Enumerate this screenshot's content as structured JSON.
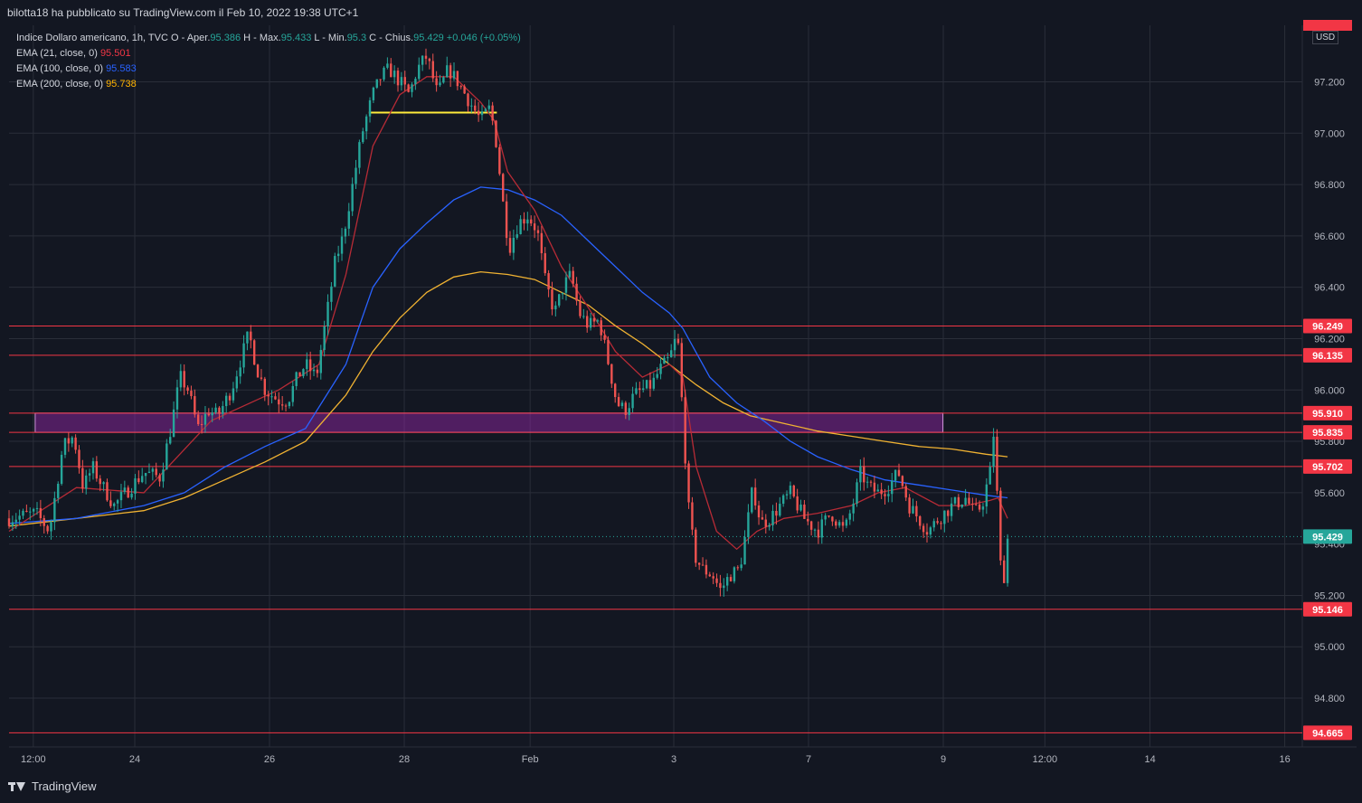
{
  "header": {
    "publisher_text": "bilotta18 ha pubblicato su TradingView.com il Feb 10, 2022 19:38 UTC+1"
  },
  "legend": {
    "symbol_text": "Indice Dollaro americano, 1h, TVC",
    "open_label": "O - Aper.",
    "open_value": "95.386",
    "high_label": "H - Max.",
    "high_value": "95.433",
    "low_label": "L - Min.",
    "low_value": "95.3",
    "close_label": "C - Chius.",
    "close_value": "95.429",
    "change_text": "+0.046 (+0.05%)",
    "ema21_label": "EMA (21, close, 0)",
    "ema21_value": "95.501",
    "ema100_label": "EMA (100, close, 0)",
    "ema100_value": "95.583",
    "ema200_label": "EMA (200, close, 0)",
    "ema200_value": "95.738"
  },
  "currency": "USD",
  "brand": "TradingView",
  "colors": {
    "background": "#131722",
    "grid": "#2a2e39",
    "up": "#26a69a",
    "down": "#ef5350",
    "ema21": "#b72b36",
    "ema100": "#2962ff",
    "ema200": "#f0b232",
    "level_line": "#f23645",
    "zone_fill": "#9c27b0",
    "yellow_level": "#ffeb3b"
  },
  "chart_data": {
    "type": "candlestick",
    "title": "Indice Dollaro americano, 1h, TVC",
    "ylim": [
      94.61,
      97.42
    ],
    "y_ticks": [
      "97.200",
      "97.000",
      "96.800",
      "96.600",
      "96.400",
      "96.200",
      "96.000",
      "95.800",
      "95.600",
      "95.400",
      "95.200",
      "95.000",
      "94.800"
    ],
    "x_ticks": [
      {
        "label": "12:00",
        "pos": 0.018
      },
      {
        "label": "24",
        "pos": 0.0933
      },
      {
        "label": "26",
        "pos": 0.1933
      },
      {
        "label": "28",
        "pos": 0.2933
      },
      {
        "label": "Feb",
        "pos": 0.3867
      },
      {
        "label": "3",
        "pos": 0.4933
      },
      {
        "label": "7",
        "pos": 0.5933
      },
      {
        "label": "9",
        "pos": 0.6933
      },
      {
        "label": "12:00",
        "pos": 0.7687
      },
      {
        "label": "14",
        "pos": 0.8467
      },
      {
        "label": "16",
        "pos": 0.9467
      }
    ],
    "horizontal_levels": [
      "96.249",
      "96.135",
      "95.910",
      "95.835",
      "95.702",
      "95.146",
      "94.665"
    ],
    "current_price": "95.429",
    "resistance_zone": {
      "low": 95.835,
      "high": 95.91,
      "start": 0.01,
      "end": 0.693
    },
    "yellow_level": {
      "value": 97.08,
      "start": 0.267,
      "end": 0.362
    },
    "price_path": [
      [
        0.0,
        95.5
      ],
      [
        0.02,
        95.52
      ],
      [
        0.03,
        95.45
      ],
      [
        0.04,
        95.78
      ],
      [
        0.048,
        95.82
      ],
      [
        0.055,
        95.62
      ],
      [
        0.062,
        95.7
      ],
      [
        0.07,
        95.62
      ],
      [
        0.078,
        95.55
      ],
      [
        0.09,
        95.62
      ],
      [
        0.1,
        95.68
      ],
      [
        0.112,
        95.66
      ],
      [
        0.12,
        95.85
      ],
      [
        0.127,
        96.05
      ],
      [
        0.133,
        96.0
      ],
      [
        0.14,
        95.85
      ],
      [
        0.148,
        95.92
      ],
      [
        0.155,
        95.9
      ],
      [
        0.165,
        96.0
      ],
      [
        0.172,
        96.12
      ],
      [
        0.178,
        96.22
      ],
      [
        0.184,
        96.08
      ],
      [
        0.19,
        96.0
      ],
      [
        0.2,
        95.96
      ],
      [
        0.207,
        95.96
      ],
      [
        0.214,
        96.05
      ],
      [
        0.22,
        96.1
      ],
      [
        0.228,
        96.05
      ],
      [
        0.236,
        96.3
      ],
      [
        0.242,
        96.5
      ],
      [
        0.248,
        96.6
      ],
      [
        0.255,
        96.8
      ],
      [
        0.262,
        97.0
      ],
      [
        0.27,
        97.15
      ],
      [
        0.276,
        97.22
      ],
      [
        0.282,
        97.25
      ],
      [
        0.29,
        97.2
      ],
      [
        0.297,
        97.15
      ],
      [
        0.303,
        97.25
      ],
      [
        0.31,
        97.3
      ],
      [
        0.318,
        97.15
      ],
      [
        0.326,
        97.25
      ],
      [
        0.333,
        97.2
      ],
      [
        0.342,
        97.12
      ],
      [
        0.35,
        97.05
      ],
      [
        0.357,
        97.1
      ],
      [
        0.362,
        96.95
      ],
      [
        0.366,
        96.75
      ],
      [
        0.371,
        96.55
      ],
      [
        0.378,
        96.65
      ],
      [
        0.385,
        96.68
      ],
      [
        0.392,
        96.62
      ],
      [
        0.398,
        96.42
      ],
      [
        0.405,
        96.3
      ],
      [
        0.411,
        96.4
      ],
      [
        0.417,
        96.45
      ],
      [
        0.423,
        96.3
      ],
      [
        0.43,
        96.25
      ],
      [
        0.438,
        96.27
      ],
      [
        0.445,
        96.1
      ],
      [
        0.451,
        95.95
      ],
      [
        0.457,
        95.92
      ],
      [
        0.464,
        95.98
      ],
      [
        0.47,
        96.0
      ],
      [
        0.477,
        96.02
      ],
      [
        0.483,
        96.08
      ],
      [
        0.49,
        96.12
      ],
      [
        0.496,
        96.22
      ],
      [
        0.5,
        95.9
      ],
      [
        0.504,
        95.55
      ],
      [
        0.509,
        95.35
      ],
      [
        0.515,
        95.3
      ],
      [
        0.522,
        95.28
      ],
      [
        0.528,
        95.22
      ],
      [
        0.535,
        95.28
      ],
      [
        0.542,
        95.3
      ],
      [
        0.547,
        95.45
      ],
      [
        0.552,
        95.62
      ],
      [
        0.558,
        95.48
      ],
      [
        0.565,
        95.5
      ],
      [
        0.572,
        95.55
      ],
      [
        0.58,
        95.6
      ],
      [
        0.59,
        95.5
      ],
      [
        0.6,
        95.45
      ],
      [
        0.61,
        95.52
      ],
      [
        0.62,
        95.45
      ],
      [
        0.626,
        95.55
      ],
      [
        0.632,
        95.68
      ],
      [
        0.638,
        95.62
      ],
      [
        0.645,
        95.6
      ],
      [
        0.652,
        95.62
      ],
      [
        0.66,
        95.68
      ],
      [
        0.668,
        95.55
      ],
      [
        0.675,
        95.5
      ],
      [
        0.682,
        95.45
      ],
      [
        0.69,
        95.5
      ],
      [
        0.7,
        95.55
      ],
      [
        0.71,
        95.58
      ],
      [
        0.716,
        95.52
      ],
      [
        0.722,
        95.55
      ],
      [
        0.728,
        95.68
      ],
      [
        0.731,
        95.85
      ],
      [
        0.734,
        95.5
      ],
      [
        0.737,
        95.2
      ],
      [
        0.741,
        95.42
      ]
    ],
    "ema21": [
      [
        0.0,
        95.45
      ],
      [
        0.05,
        95.62
      ],
      [
        0.1,
        95.6
      ],
      [
        0.15,
        95.88
      ],
      [
        0.2,
        96.0
      ],
      [
        0.23,
        96.1
      ],
      [
        0.25,
        96.45
      ],
      [
        0.27,
        96.95
      ],
      [
        0.29,
        97.15
      ],
      [
        0.31,
        97.22
      ],
      [
        0.33,
        97.22
      ],
      [
        0.35,
        97.12
      ],
      [
        0.36,
        97.05
      ],
      [
        0.37,
        96.85
      ],
      [
        0.39,
        96.7
      ],
      [
        0.41,
        96.48
      ],
      [
        0.43,
        96.32
      ],
      [
        0.45,
        96.15
      ],
      [
        0.47,
        96.05
      ],
      [
        0.49,
        96.1
      ],
      [
        0.5,
        96.05
      ],
      [
        0.51,
        95.7
      ],
      [
        0.525,
        95.45
      ],
      [
        0.54,
        95.38
      ],
      [
        0.555,
        95.45
      ],
      [
        0.575,
        95.5
      ],
      [
        0.6,
        95.52
      ],
      [
        0.625,
        95.55
      ],
      [
        0.645,
        95.6
      ],
      [
        0.665,
        95.62
      ],
      [
        0.69,
        95.55
      ],
      [
        0.71,
        95.55
      ],
      [
        0.728,
        95.57
      ],
      [
        0.734,
        95.58
      ],
      [
        0.741,
        95.5
      ]
    ],
    "ema100": [
      [
        0.0,
        95.48
      ],
      [
        0.05,
        95.5
      ],
      [
        0.1,
        95.55
      ],
      [
        0.13,
        95.6
      ],
      [
        0.16,
        95.7
      ],
      [
        0.19,
        95.78
      ],
      [
        0.22,
        95.85
      ],
      [
        0.25,
        96.1
      ],
      [
        0.27,
        96.4
      ],
      [
        0.29,
        96.55
      ],
      [
        0.31,
        96.65
      ],
      [
        0.33,
        96.74
      ],
      [
        0.35,
        96.79
      ],
      [
        0.37,
        96.78
      ],
      [
        0.39,
        96.74
      ],
      [
        0.41,
        96.68
      ],
      [
        0.43,
        96.58
      ],
      [
        0.45,
        96.48
      ],
      [
        0.47,
        96.38
      ],
      [
        0.49,
        96.3
      ],
      [
        0.5,
        96.24
      ],
      [
        0.52,
        96.05
      ],
      [
        0.54,
        95.95
      ],
      [
        0.56,
        95.88
      ],
      [
        0.58,
        95.8
      ],
      [
        0.6,
        95.74
      ],
      [
        0.625,
        95.69
      ],
      [
        0.65,
        95.65
      ],
      [
        0.675,
        95.63
      ],
      [
        0.7,
        95.61
      ],
      [
        0.725,
        95.59
      ],
      [
        0.741,
        95.58
      ]
    ],
    "ema200": [
      [
        0.0,
        95.47
      ],
      [
        0.05,
        95.5
      ],
      [
        0.1,
        95.53
      ],
      [
        0.13,
        95.58
      ],
      [
        0.16,
        95.65
      ],
      [
        0.19,
        95.72
      ],
      [
        0.22,
        95.8
      ],
      [
        0.25,
        95.98
      ],
      [
        0.27,
        96.15
      ],
      [
        0.29,
        96.28
      ],
      [
        0.31,
        96.38
      ],
      [
        0.33,
        96.44
      ],
      [
        0.35,
        96.46
      ],
      [
        0.37,
        96.45
      ],
      [
        0.39,
        96.43
      ],
      [
        0.41,
        96.38
      ],
      [
        0.43,
        96.33
      ],
      [
        0.45,
        96.25
      ],
      [
        0.47,
        96.18
      ],
      [
        0.49,
        96.1
      ],
      [
        0.51,
        96.02
      ],
      [
        0.53,
        95.95
      ],
      [
        0.55,
        95.9
      ],
      [
        0.575,
        95.87
      ],
      [
        0.6,
        95.84
      ],
      [
        0.625,
        95.82
      ],
      [
        0.65,
        95.8
      ],
      [
        0.675,
        95.78
      ],
      [
        0.7,
        95.77
      ],
      [
        0.725,
        95.75
      ],
      [
        0.741,
        95.74
      ]
    ]
  }
}
